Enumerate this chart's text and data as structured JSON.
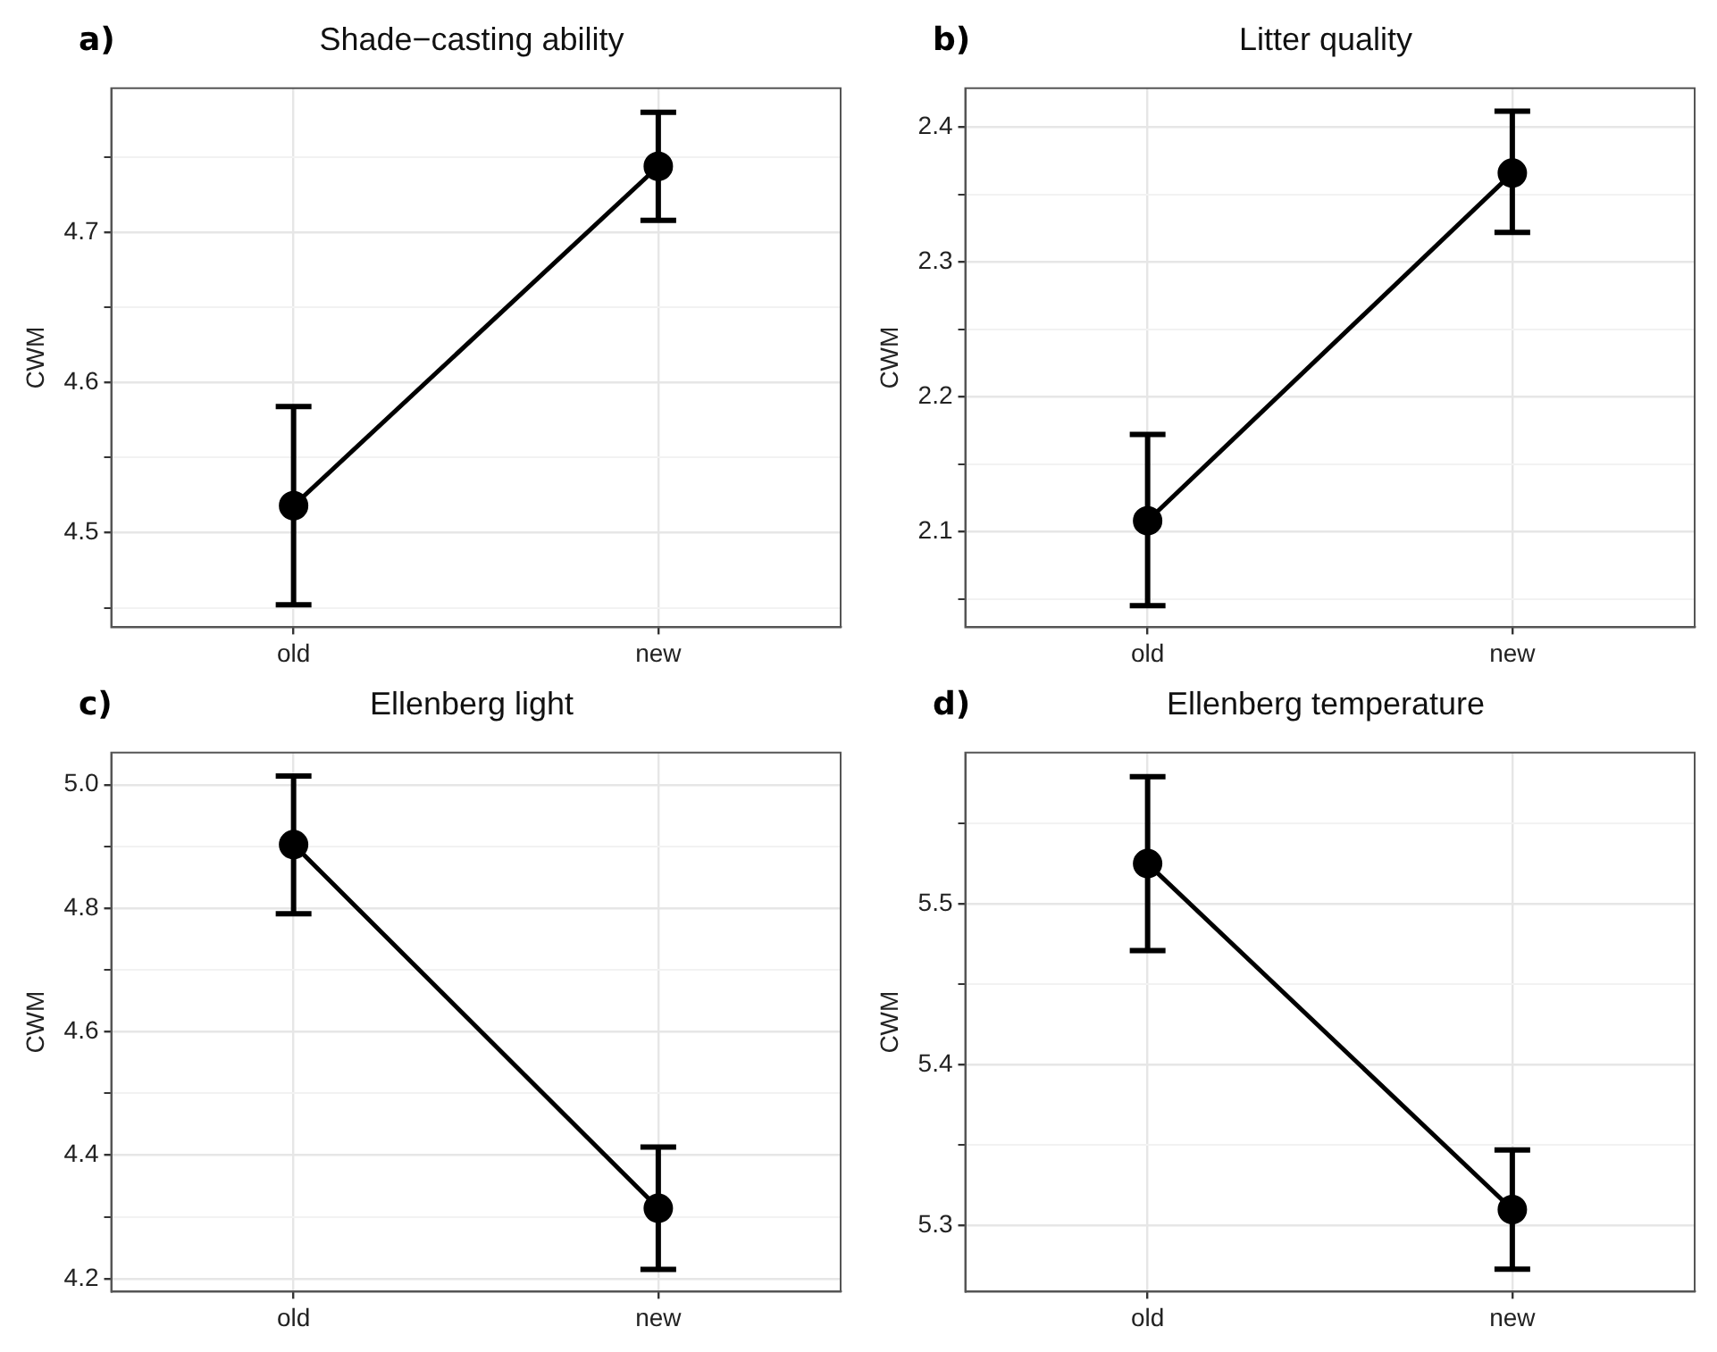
{
  "chart_data": [
    {
      "type": "line",
      "title": "Shade−casting ability",
      "ylabel": "CWM",
      "annotations": [
        "a)"
      ],
      "categories": [
        "old",
        "new"
      ],
      "values": [
        4.518,
        4.744
      ],
      "errors": [
        [
          4.452,
          4.584
        ],
        [
          4.708,
          4.78
        ]
      ],
      "color": "#000000",
      "marker": "circle",
      "line_style": "solid",
      "grid": true,
      "ylim": [
        4.437,
        4.796
      ],
      "yticks": [
        {
          "value": 4.45,
          "label": null
        },
        4.5,
        {
          "value": 4.55,
          "label": null
        },
        4.6,
        {
          "value": 4.65,
          "label": null
        },
        4.7,
        {
          "value": 4.75,
          "label": null
        }
      ]
    },
    {
      "type": "line",
      "title": "Litter quality",
      "ylabel": "CWM",
      "annotations": [
        "b)"
      ],
      "categories": [
        "old",
        "new"
      ],
      "values": [
        2.108,
        2.366
      ],
      "errors": [
        [
          2.045,
          2.172
        ],
        [
          2.322,
          2.412
        ]
      ],
      "color": "#000000",
      "marker": "circle",
      "line_style": "solid",
      "grid": true,
      "ylim": [
        2.029,
        2.429
      ],
      "yticks": [
        {
          "value": 2.05,
          "label": null
        },
        2.1,
        {
          "value": 2.15,
          "label": null
        },
        2.2,
        {
          "value": 2.25,
          "label": null
        },
        2.3,
        {
          "value": 2.35,
          "label": null
        },
        2.4
      ]
    },
    {
      "type": "line",
      "title": "Ellenberg light",
      "ylabel": "CWM",
      "annotations": [
        "c)"
      ],
      "categories": [
        "old",
        "new"
      ],
      "values": [
        4.903,
        4.314
      ],
      "errors": [
        [
          4.791,
          5.014
        ],
        [
          4.215,
          4.413
        ]
      ],
      "color": "#000000",
      "marker": "circle",
      "line_style": "solid",
      "grid": true,
      "ylim": [
        4.179,
        5.052
      ],
      "yticks": [
        {
          "value": 4.2,
          "label": "4.2"
        },
        {
          "value": 4.3,
          "label": null
        },
        {
          "value": 4.4,
          "label": "4.4"
        },
        {
          "value": 4.5,
          "label": null
        },
        {
          "value": 4.6,
          "label": "4.6"
        },
        {
          "value": 4.7,
          "label": null
        },
        {
          "value": 4.8,
          "label": "4.8"
        },
        {
          "value": 4.9,
          "label": null
        },
        {
          "value": 5.0,
          "label": "5.0"
        }
      ]
    },
    {
      "type": "line",
      "title": "Ellenberg temperature",
      "ylabel": "CWM",
      "annotations": [
        "d)"
      ],
      "categories": [
        "old",
        "new"
      ],
      "values": [
        5.525,
        5.31
      ],
      "errors": [
        [
          5.471,
          5.579
        ],
        [
          5.273,
          5.347
        ]
      ],
      "color": "#000000",
      "marker": "circle",
      "line_style": "solid",
      "grid": true,
      "ylim": [
        5.259,
        5.594
      ],
      "yticks": [
        5.3,
        {
          "value": 5.35,
          "label": null
        },
        5.4,
        {
          "value": 5.45,
          "label": null
        },
        5.5,
        {
          "value": 5.55,
          "label": null
        }
      ]
    }
  ]
}
